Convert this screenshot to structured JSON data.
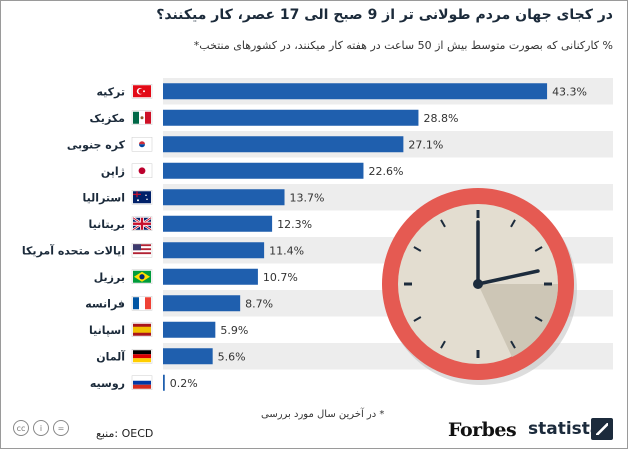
{
  "title": "در کجای جهان مردم طولانی تر از 9 صبح الی 17 عصر، کار میکنند؟",
  "subtitle": "% کارکنانی که بصورت متوسط بیش از 50 ساعت در هفته کار میکنند، در کشورهای منتخب*",
  "footnote": "* در آخرین سال مورد بررسی",
  "source": "منبع: OECD",
  "brand": {
    "forbes": "Forbes",
    "statista": "statista"
  },
  "colors": {
    "bar": "#1f5fae",
    "band": "#ededed",
    "label": "#1b2a3a",
    "clock_ring": "#e55a52",
    "clock_face": "#e3ddd0"
  },
  "chart_data": {
    "type": "bar",
    "orientation": "horizontal",
    "categories": [
      "ترکیه",
      "مکزیک",
      "کره جنوبی",
      "ژاپن",
      "استرالیا",
      "بریتانیا",
      "ایالات متحده آمریکا",
      "برزیل",
      "فرانسه",
      "اسپانیا",
      "آلمان",
      "روسیه"
    ],
    "flags": [
      "turkey-flag",
      "mexico-flag",
      "south-korea-flag",
      "japan-flag",
      "australia-flag",
      "uk-flag",
      "usa-flag",
      "brazil-flag",
      "france-flag",
      "spain-flag",
      "germany-flag",
      "russia-flag"
    ],
    "values": [
      43.3,
      28.8,
      27.1,
      22.6,
      13.7,
      12.3,
      11.4,
      10.7,
      8.7,
      5.9,
      5.6,
      0.2
    ],
    "value_labels": [
      "43.3%",
      "28.8%",
      "27.1%",
      "22.6%",
      "13.7%",
      "12.3%",
      "11.4%",
      "10.7%",
      "8.7%",
      "5.9%",
      "5.6%",
      "0.2%"
    ],
    "xlim": [
      0,
      50
    ],
    "grid": false,
    "decoration": "clock-icon"
  }
}
